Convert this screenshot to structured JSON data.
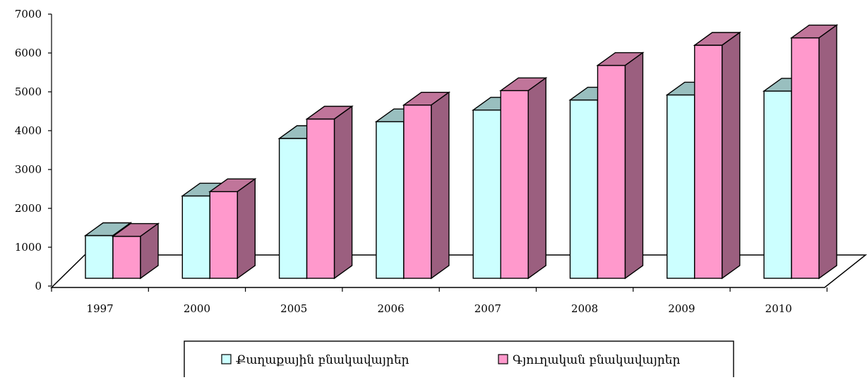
{
  "chart_data": {
    "type": "bar",
    "categories": [
      "1997",
      "2000",
      "2005",
      "2006",
      "2007",
      "2008",
      "2009",
      "2010"
    ],
    "series": [
      {
        "name": "Քաղաքային բնակավայրեր",
        "values": [
          1100,
          2120,
          3600,
          4030,
          4330,
          4590,
          4720,
          4820
        ],
        "color": "#ccffff",
        "top_color": "#99bfbf",
        "side_color": "#99bfbf"
      },
      {
        "name": "Գյուղական բնակավայրեր",
        "values": [
          1080,
          2230,
          4100,
          4460,
          4830,
          5480,
          6000,
          6190
        ],
        "color": "#ff99cc",
        "top_color": "#c0759a",
        "side_color": "#9b5f7f"
      }
    ],
    "ylim": [
      0,
      7000
    ],
    "y_ticks": [
      "0",
      "1000",
      "2000",
      "3000",
      "4000",
      "5000",
      "6000",
      "7000"
    ],
    "grid": false,
    "legend_position": "bottom",
    "style": "3d-clustered-column"
  }
}
